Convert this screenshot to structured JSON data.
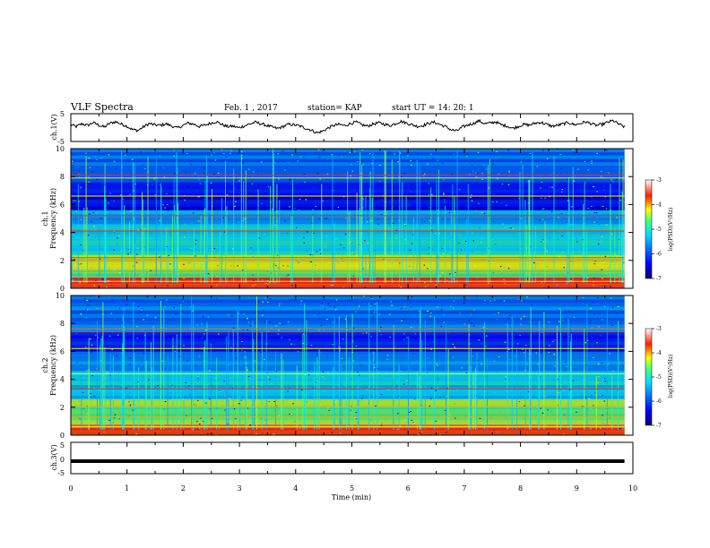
{
  "header": {
    "title": "VLF Spectra",
    "date": "Feb. 1 , 2017",
    "station": "station= KAP",
    "start_ut": "start  UT =  14: 20: 1"
  },
  "chart_data": [
    {
      "type": "line",
      "panel": "ch1-waveform",
      "ylabel": "ch.1(V)",
      "ylim": [
        -5,
        5
      ],
      "yticks": [
        5,
        -5
      ],
      "x_range_min": [
        0,
        9.85
      ],
      "trace_color": "#000000",
      "y_profile": [
        1.2,
        0.4,
        1.6,
        0.9,
        2.1,
        1.0,
        0.2,
        1.8,
        2.4,
        1.5,
        0.6,
        -0.8,
        -1.2,
        0.3,
        1.7,
        1.1,
        0.9,
        1.6,
        0.7,
        -0.2,
        0.8,
        1.9,
        1.4,
        0.5,
        1.0,
        1.8,
        2.5,
        1.3,
        0.4,
        0.6,
        -0.1,
        0.7,
        1.5,
        2.2,
        1.6,
        0.9,
        0.2,
        -0.4,
        0.5,
        1.4,
        1.1,
        0.6,
        -0.3,
        -1.0,
        -2.2,
        -1.5,
        -0.2,
        0.9,
        1.3,
        0.8,
        1.7,
        2.3,
        1.2,
        0.6,
        1.4,
        2.0,
        1.5,
        0.8,
        1.6,
        2.6,
        1.9,
        1.2,
        0.5,
        0.9,
        1.8,
        2.2,
        1.3,
        0.4,
        -0.9,
        -1.4,
        0.2,
        1.1,
        1.7,
        2.8,
        1.6,
        1.9,
        2.4,
        1.1,
        0.7,
        -0.3,
        0.5,
        1.3,
        1.0,
        1.8,
        2.2,
        1.4,
        0.6,
        0.9,
        1.5,
        2.1,
        1.2,
        1.6,
        2.4,
        1.7,
        0.9,
        1.3,
        2.2,
        2.9,
        1.4,
        0.3
      ],
      "x_ticks": [
        0,
        1,
        2,
        3,
        4,
        5,
        6,
        7,
        8,
        9,
        10
      ]
    },
    {
      "type": "heatmap",
      "panel": "ch1-spectrogram",
      "ylabel_line1": "ch.1",
      "ylabel_line2": "Frequency (kHz)",
      "ylim_kHz": [
        0,
        10
      ],
      "yticks": [
        0,
        2,
        4,
        6,
        8,
        10
      ],
      "x_range_min": [
        0,
        9.85
      ],
      "colorbar": {
        "label": "log(PSD)(V²/Hz)",
        "range": [
          -7,
          -3
        ],
        "ticks": [
          "-3",
          "-4",
          "-5",
          "-6",
          "-7"
        ]
      },
      "bands_kHz": [
        {
          "from": 0.0,
          "to": 0.8,
          "level": -3.6
        },
        {
          "from": 0.8,
          "to": 1.4,
          "level": -4.6
        },
        {
          "from": 1.4,
          "to": 2.4,
          "level": -4.4
        },
        {
          "from": 2.4,
          "to": 3.4,
          "level": -5.0
        },
        {
          "from": 3.4,
          "to": 4.6,
          "level": -5.1
        },
        {
          "from": 4.6,
          "to": 5.6,
          "level": -5.5
        },
        {
          "from": 5.6,
          "to": 7.6,
          "level": -6.4
        },
        {
          "from": 7.6,
          "to": 10.0,
          "level": -5.8
        }
      ],
      "lines_kHz": [
        0.3,
        0.5,
        0.8,
        1.2,
        2.0,
        2.2,
        4.1,
        5.2,
        6.6,
        7.9,
        8.1
      ]
    },
    {
      "type": "heatmap",
      "panel": "ch2-spectrogram",
      "ylabel_line1": "ch.2",
      "ylabel_line2": "Frequency (kHz)",
      "ylim_kHz": [
        0,
        10
      ],
      "yticks": [
        0,
        2,
        4,
        6,
        8,
        10
      ],
      "x_range_min": [
        0,
        9.85
      ],
      "colorbar": {
        "label": "log(PSD)(V²/Hz)",
        "range": [
          -7,
          -3
        ],
        "ticks": [
          "-3",
          "-4",
          "-5",
          "-6",
          "-7"
        ]
      },
      "bands_kHz": [
        {
          "from": 0.0,
          "to": 0.8,
          "level": -3.6
        },
        {
          "from": 0.8,
          "to": 1.6,
          "level": -4.5
        },
        {
          "from": 1.6,
          "to": 2.6,
          "level": -4.6
        },
        {
          "from": 2.6,
          "to": 3.6,
          "level": -5.3
        },
        {
          "from": 3.6,
          "to": 4.6,
          "level": -5.0
        },
        {
          "from": 4.6,
          "to": 6.0,
          "level": -5.6
        },
        {
          "from": 6.0,
          "to": 7.4,
          "level": -6.3
        },
        {
          "from": 7.4,
          "to": 10.0,
          "level": -5.7
        }
      ],
      "lines_kHz": [
        0.3,
        0.6,
        1.3,
        2.0,
        3.3,
        4.4,
        6.2,
        7.4,
        7.6
      ]
    },
    {
      "type": "line",
      "panel": "ch3-waveform",
      "ylabel": "ch.3(V)",
      "ylim": [
        -5,
        5
      ],
      "yticks": [
        5,
        0,
        -5
      ],
      "x_range_min": [
        0,
        9.85
      ],
      "constant_value": -1.0,
      "trace_color": "#000000",
      "xlabel": "Time (min)",
      "xlim": [
        0,
        10
      ],
      "x_ticks": [
        0,
        1,
        2,
        3,
        4,
        5,
        6,
        7,
        8,
        9,
        10
      ]
    }
  ]
}
